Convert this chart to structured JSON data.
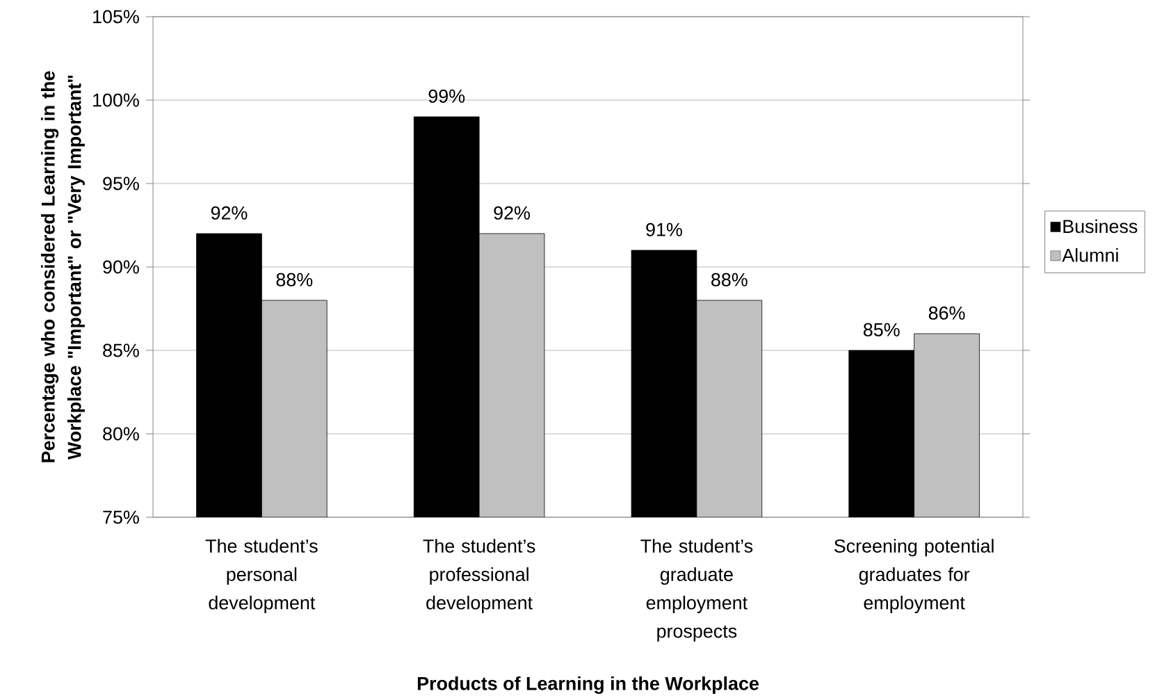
{
  "chart_data": {
    "type": "bar",
    "xlabel": "Products of Learning in the Workplace",
    "ylabel": "Percentage who considered Learning in the Workplace \"Important\" or \"Very Important\"",
    "categories": [
      "The student’s personal development",
      "The student’s professional development",
      "The student’s graduate employment prospects",
      "Screening potential graduates for employment"
    ],
    "series": [
      {
        "name": "Business",
        "color": "#000000",
        "values": [
          92,
          99,
          91,
          85
        ],
        "value_labels": [
          "92%",
          "99%",
          "91%",
          "85%"
        ]
      },
      {
        "name": "Alumni",
        "color": "#c0c0c0",
        "values": [
          88,
          92,
          88,
          86
        ],
        "value_labels": [
          "88%",
          "92%",
          "88%",
          "86%"
        ]
      }
    ],
    "ylim": [
      75,
      105
    ],
    "yticks": [
      {
        "value": 75,
        "label": "75%"
      },
      {
        "value": 80,
        "label": "80%"
      },
      {
        "value": 85,
        "label": "85%"
      },
      {
        "value": 90,
        "label": "90%"
      },
      {
        "value": 95,
        "label": "95%"
      },
      {
        "value": 100,
        "label": "100%"
      },
      {
        "value": 105,
        "label": "105%"
      }
    ],
    "grid": "y",
    "legend": "right"
  }
}
